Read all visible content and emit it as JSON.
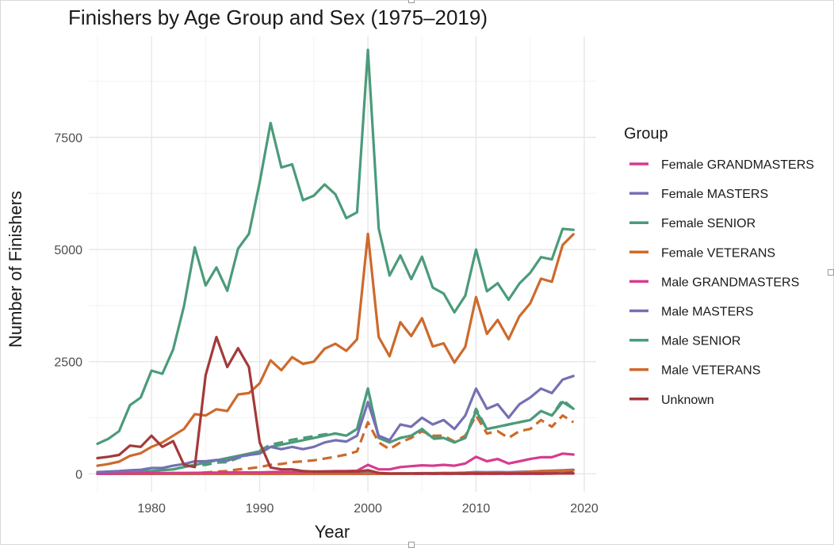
{
  "chart_data": {
    "type": "line",
    "title": "Finishers by Age Group and Sex (1975–2019)",
    "xlabel": "Year",
    "ylabel": "Number of Finishers",
    "xlim": [
      1974.2,
      2021.1
    ],
    "ylim": [
      -400,
      9750
    ],
    "x_ticks": [
      1980,
      1990,
      2000,
      2010,
      2020
    ],
    "y_ticks": [
      0,
      2500,
      5000,
      7500
    ],
    "grid": true,
    "legend": {
      "title": "Group",
      "position": "right"
    },
    "x": [
      1975,
      1976,
      1977,
      1978,
      1979,
      1980,
      1981,
      1982,
      1983,
      1984,
      1985,
      1986,
      1987,
      1988,
      1989,
      1990,
      1991,
      1992,
      1993,
      1994,
      1995,
      1996,
      1997,
      1998,
      1999,
      2000,
      2001,
      2002,
      2003,
      2004,
      2005,
      2006,
      2007,
      2008,
      2009,
      2010,
      2011,
      2012,
      2013,
      2014,
      2015,
      2016,
      2017,
      2018,
      2019
    ],
    "series": [
      {
        "name": "Female GRANDMASTERS",
        "color": "#d63c8f",
        "dash": false,
        "values": [
          0,
          0,
          0,
          0,
          0,
          0,
          0,
          0,
          0,
          0,
          0,
          0,
          0,
          0,
          0,
          0,
          0,
          0,
          0,
          0,
          0,
          0,
          0,
          0,
          0,
          0,
          0,
          0,
          0,
          0,
          0,
          0,
          0,
          0,
          0,
          0,
          0,
          0,
          0,
          0,
          0,
          0,
          5,
          10,
          10
        ]
      },
      {
        "name": "Female MASTERS",
        "color": "#7570b3",
        "dash": false,
        "values": [
          0,
          0,
          0,
          0,
          0,
          0,
          0,
          0,
          0,
          0,
          0,
          0,
          0,
          0,
          0,
          0,
          0,
          0,
          0,
          0,
          0,
          0,
          0,
          0,
          0,
          30,
          5,
          5,
          10,
          10,
          15,
          15,
          20,
          20,
          25,
          40,
          35,
          40,
          35,
          45,
          50,
          60,
          70,
          80,
          90
        ]
      },
      {
        "name": "Female SENIOR",
        "color": "#4b9b7a",
        "dash": false,
        "values": [
          10,
          20,
          30,
          40,
          50,
          60,
          80,
          100,
          150,
          200,
          250,
          300,
          350,
          400,
          450,
          500,
          600,
          650,
          700,
          750,
          800,
          850,
          900,
          850,
          1000,
          1900,
          800,
          700,
          800,
          850,
          1000,
          800,
          800,
          700,
          800,
          1400,
          1000,
          1050,
          1100,
          1150,
          1200,
          1400,
          1300,
          1600,
          1450
        ]
      },
      {
        "name": "Female VETERANS",
        "color": "#cd6a2c",
        "dash": false,
        "values": [
          0,
          0,
          0,
          0,
          0,
          0,
          0,
          0,
          0,
          0,
          0,
          0,
          0,
          0,
          0,
          0,
          0,
          0,
          0,
          0,
          0,
          0,
          0,
          0,
          0,
          0,
          0,
          0,
          0,
          5,
          10,
          10,
          15,
          10,
          15,
          30,
          30,
          30,
          25,
          35,
          45,
          60,
          60,
          70,
          80
        ]
      },
      {
        "name": "Male GRANDMASTERS",
        "color": "#d63c8f",
        "dash": false,
        "values": [
          5,
          5,
          10,
          10,
          15,
          15,
          15,
          20,
          20,
          20,
          25,
          25,
          30,
          35,
          30,
          30,
          40,
          45,
          40,
          45,
          50,
          55,
          60,
          60,
          70,
          200,
          100,
          100,
          150,
          170,
          190,
          180,
          200,
          180,
          230,
          380,
          280,
          330,
          230,
          280,
          330,
          370,
          370,
          450,
          430
        ]
      },
      {
        "name": "Male MASTERS",
        "color": "#7570b3",
        "dash": false,
        "values": [
          40,
          50,
          60,
          80,
          90,
          130,
          130,
          180,
          220,
          280,
          280,
          310,
          290,
          380,
          420,
          450,
          600,
          550,
          600,
          550,
          600,
          700,
          750,
          720,
          850,
          1600,
          850,
          750,
          1100,
          1050,
          1250,
          1100,
          1200,
          1000,
          1300,
          1900,
          1450,
          1550,
          1250,
          1550,
          1700,
          1900,
          1800,
          2100,
          2180
        ]
      },
      {
        "name": "Male SENIOR",
        "color": "#4b9b7a",
        "dash": false,
        "values": [
          670,
          780,
          950,
          1530,
          1700,
          2300,
          2230,
          2770,
          3740,
          5050,
          4200,
          4600,
          4080,
          5020,
          5350,
          6500,
          7820,
          6830,
          6900,
          6100,
          6200,
          6450,
          6230,
          5700,
          5830,
          9450,
          5470,
          4420,
          4870,
          4340,
          4840,
          4150,
          4020,
          3600,
          3970,
          5000,
          4070,
          4250,
          3880,
          4240,
          4480,
          4830,
          4780,
          5460,
          5440
        ]
      },
      {
        "name": "Male VETERANS",
        "color": "#cd6a2c",
        "dash": false,
        "values": [
          180,
          220,
          270,
          400,
          460,
          600,
          700,
          850,
          1000,
          1330,
          1300,
          1440,
          1400,
          1770,
          1800,
          2020,
          2530,
          2310,
          2600,
          2450,
          2500,
          2790,
          2900,
          2740,
          3000,
          5350,
          3050,
          2620,
          3380,
          3070,
          3470,
          2840,
          2910,
          2480,
          2830,
          3940,
          3120,
          3430,
          3000,
          3510,
          3800,
          4350,
          4280,
          5100,
          5340
        ]
      },
      {
        "name": "Unknown",
        "color": "#a33a3a",
        "dash": false,
        "values": [
          350,
          380,
          420,
          630,
          600,
          850,
          600,
          730,
          200,
          150,
          2200,
          3050,
          2380,
          2800,
          2380,
          700,
          140,
          100,
          100,
          60,
          50,
          50,
          50,
          50,
          50,
          80,
          20,
          10,
          10,
          10,
          10,
          10,
          10,
          10,
          10,
          10,
          10,
          10,
          10,
          10,
          10,
          10,
          10,
          10,
          10
        ]
      }
    ],
    "dashed_series": [
      {
        "name": "Male SENIOR",
        "color": "#4b9b7a",
        "values": [
          10,
          20,
          30,
          40,
          50,
          60,
          80,
          100,
          150,
          200,
          200,
          250,
          260,
          350,
          420,
          520,
          650,
          700,
          760,
          800,
          840,
          880,
          900,
          850,
          1000,
          1900,
          800,
          700,
          800,
          850,
          1000,
          780,
          800,
          700,
          800,
          1450,
          1000,
          1050,
          1100,
          1150,
          1200,
          1400,
          1300,
          1650,
          1450
        ]
      },
      {
        "name": "Male VETERANS",
        "color": "#cd6a2c",
        "values": [
          0,
          0,
          0,
          0,
          0,
          0,
          0,
          10,
          15,
          20,
          30,
          50,
          60,
          100,
          120,
          150,
          200,
          220,
          260,
          280,
          300,
          340,
          380,
          430,
          500,
          1150,
          700,
          550,
          700,
          800,
          950,
          850,
          850,
          720,
          850,
          1300,
          900,
          950,
          800,
          950,
          1000,
          1200,
          1050,
          1300,
          1150
        ]
      },
      {
        "name": "Female GRANDMASTERS",
        "color": "#d63c8f",
        "values": [
          0,
          0,
          0,
          0,
          0,
          0,
          0,
          0,
          0,
          0,
          0,
          0,
          0,
          0,
          0,
          0,
          0,
          0,
          0,
          0,
          0,
          0,
          0,
          0,
          0,
          0,
          0,
          0,
          0,
          0,
          0,
          0,
          0,
          0,
          0,
          0,
          0,
          0,
          0,
          0,
          0,
          0,
          10,
          15,
          15
        ]
      },
      {
        "name": "Unknown",
        "color": "#a33a3a",
        "values": [
          0,
          0,
          0,
          0,
          0,
          0,
          0,
          0,
          0,
          0,
          0,
          0,
          0,
          0,
          0,
          0,
          0,
          0,
          0,
          0,
          0,
          0,
          0,
          0,
          0,
          0,
          0,
          0,
          0,
          0,
          0,
          0,
          0,
          0,
          0,
          20,
          20,
          20,
          15,
          20,
          20,
          25,
          30,
          40,
          35
        ]
      }
    ]
  }
}
